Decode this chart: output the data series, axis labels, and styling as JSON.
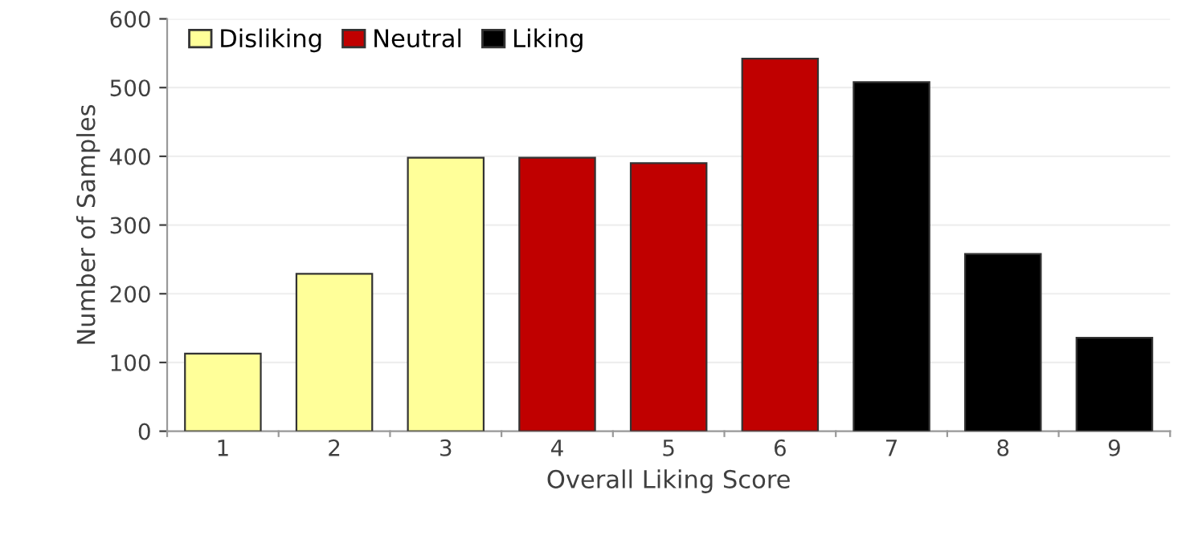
{
  "chart_data": {
    "type": "bar",
    "xlabel": "Overall Liking Score",
    "ylabel": "Number of Samples",
    "categories": [
      "1",
      "2",
      "3",
      "4",
      "5",
      "6",
      "7",
      "8",
      "9"
    ],
    "series": [
      {
        "name": "Disliking",
        "color": "#ffff99",
        "values": [
          113,
          229,
          398,
          null,
          null,
          null,
          null,
          null,
          null
        ]
      },
      {
        "name": "Neutral",
        "color": "#c00000",
        "values": [
          null,
          null,
          null,
          398,
          390,
          542,
          null,
          null,
          null
        ]
      },
      {
        "name": "Liking",
        "color": "#000000",
        "values": [
          null,
          null,
          null,
          null,
          null,
          null,
          508,
          258,
          136
        ]
      }
    ],
    "ylim": [
      0,
      600
    ],
    "yticks": [
      0,
      100,
      200,
      300,
      400,
      500,
      600
    ],
    "grid": "y",
    "legend": "top left"
  }
}
